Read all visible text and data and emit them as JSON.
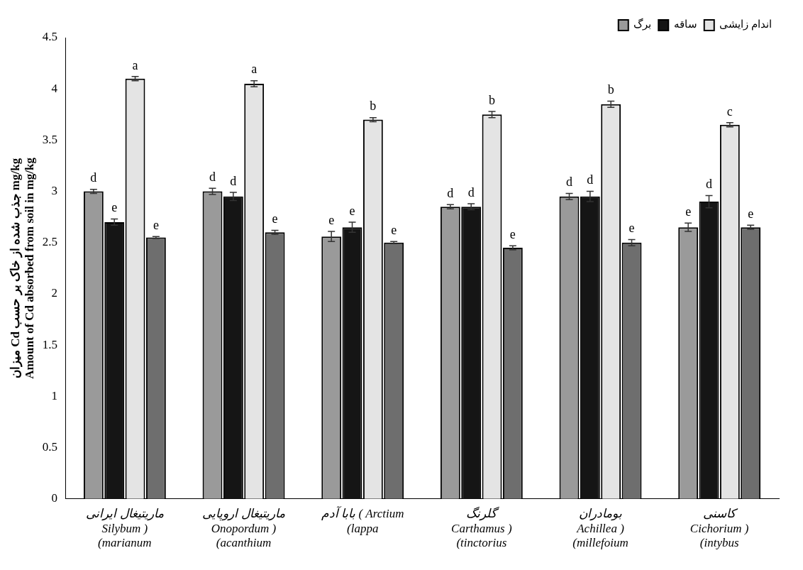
{
  "chart_data": {
    "type": "bar",
    "categories": [
      "ماریتیغال ایرانی\nSilybum )\n(marianum",
      "ماریتیغال اروپایی\nOnopordum )\n(acanthium",
      "بابا آدم ( Arctium\n(lappa",
      "گلرنگ\nCarthamus )\n(tinctorius",
      "بومادران\nAchillea )\n(millefoium",
      "کاسنی\nCichorium )\n(intybus"
    ],
    "ylabel": "میزان Cd جذب شده از خاک بر حسب mg/kg\nAmount of Cd absorbed from soil in mg/kg",
    "ylim": [
      0,
      4.5
    ],
    "yticks": [
      0,
      0.5,
      1,
      1.5,
      2,
      2.5,
      3,
      3.5,
      4,
      4.5
    ],
    "grid": false,
    "legend": "top right",
    "series": [
      {
        "name": "برگ",
        "color": "#9a9a9a",
        "values": [
          3.0,
          3.0,
          2.56,
          2.85,
          2.95,
          2.65
        ],
        "errors": [
          0.02,
          0.03,
          0.05,
          0.02,
          0.03,
          0.04
        ],
        "value_labels": [
          "d",
          "d",
          "e",
          "d",
          "d",
          "e"
        ]
      },
      {
        "name": "ساقه",
        "color": "#151515",
        "values": [
          2.7,
          2.95,
          2.65,
          2.85,
          2.95,
          2.9
        ],
        "errors": [
          0.03,
          0.04,
          0.05,
          0.03,
          0.05,
          0.06
        ],
        "value_labels": [
          "e",
          "d",
          "e",
          "d",
          "d",
          "d"
        ]
      },
      {
        "name": "اندام زایشی",
        "color": "#e4e4e4",
        "values": [
          4.1,
          4.05,
          3.7,
          3.75,
          3.85,
          3.65
        ],
        "errors": [
          0.02,
          0.03,
          0.02,
          0.03,
          0.03,
          0.02
        ],
        "value_labels": [
          "a",
          "a",
          "b",
          "b",
          "b",
          "c"
        ]
      },
      {
        "color": "#6e6e6e",
        "values": [
          2.55,
          2.6,
          2.5,
          2.45,
          2.5,
          2.65
        ],
        "errors": [
          0.01,
          0.02,
          0.01,
          0.02,
          0.03,
          0.02
        ],
        "value_labels": [
          "e",
          "e",
          "e",
          "e",
          "e",
          "e"
        ]
      }
    ]
  }
}
